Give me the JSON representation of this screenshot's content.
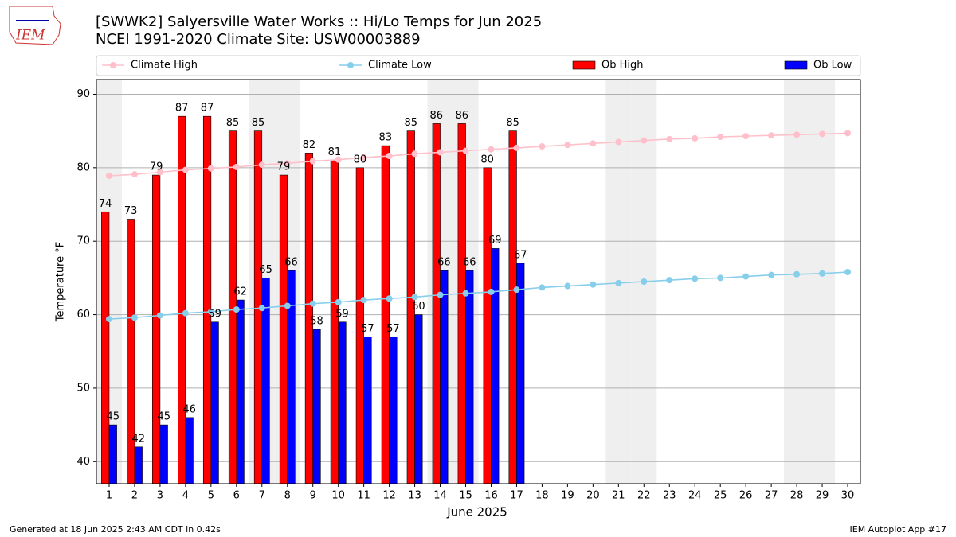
{
  "chart_data": {
    "type": "bar",
    "title": "[SWWK2] Salyersville Water Works :: Hi/Lo Temps for Jun 2025",
    "subtitle": "NCEI 1991-2020 Climate Site: USW00003889",
    "logo": "IEM",
    "x_label": "June 2025",
    "y_label": "Temperature °F",
    "footer_left": "Generated at 18 Jun 2025 2:43 AM CDT in 0.42s",
    "footer_right": "IEM Autoplot App #17",
    "x": [
      1,
      2,
      3,
      4,
      5,
      6,
      7,
      8,
      9,
      10,
      11,
      12,
      13,
      14,
      15,
      16,
      17,
      18,
      19,
      20,
      21,
      22,
      23,
      24,
      25,
      26,
      27,
      28,
      29,
      30
    ],
    "xlim": [
      0.5,
      30.5
    ],
    "xticks": [
      1,
      2,
      3,
      4,
      5,
      6,
      7,
      8,
      9,
      10,
      11,
      12,
      13,
      14,
      15,
      16,
      17,
      18,
      19,
      20,
      21,
      22,
      23,
      24,
      25,
      26,
      27,
      28,
      29,
      30
    ],
    "ylim": [
      37,
      92
    ],
    "yticks": [
      40,
      50,
      60,
      70,
      80,
      90
    ],
    "grid": true,
    "legend": "top",
    "series": [
      {
        "name": "Climate High",
        "type": "line",
        "color": "#ffc0cb",
        "values": [
          78.9,
          79.1,
          79.4,
          79.7,
          79.9,
          80.1,
          80.4,
          80.6,
          80.9,
          81.1,
          81.4,
          81.6,
          81.9,
          82.1,
          82.3,
          82.5,
          82.7,
          82.9,
          83.1,
          83.3,
          83.5,
          83.7,
          83.9,
          84.0,
          84.2,
          84.3,
          84.4,
          84.5,
          84.6,
          84.7
        ]
      },
      {
        "name": "Climate Low",
        "type": "line",
        "color": "#87ceeb",
        "values": [
          59.4,
          59.6,
          59.9,
          60.2,
          60.4,
          60.7,
          60.9,
          61.2,
          61.5,
          61.7,
          62.0,
          62.2,
          62.4,
          62.7,
          62.9,
          63.1,
          63.4,
          63.7,
          63.9,
          64.1,
          64.3,
          64.5,
          64.7,
          64.9,
          65.0,
          65.2,
          65.4,
          65.5,
          65.6,
          65.8
        ]
      },
      {
        "name": "Ob High",
        "type": "bar",
        "color": "#ff0000",
        "values": [
          74,
          73,
          79,
          87,
          87,
          85,
          85,
          79,
          82,
          81,
          80,
          83,
          85,
          86,
          86,
          80,
          85,
          null,
          null,
          null,
          null,
          null,
          null,
          null,
          null,
          null,
          null,
          null,
          null,
          null
        ]
      },
      {
        "name": "Ob Low",
        "type": "bar",
        "color": "#0000ff",
        "values": [
          45,
          42,
          45,
          46,
          59,
          62,
          65,
          66,
          58,
          59,
          57,
          57,
          60,
          66,
          66,
          69,
          67,
          null,
          null,
          null,
          null,
          null,
          null,
          null,
          null,
          null,
          null,
          null,
          null,
          null
        ]
      }
    ]
  }
}
